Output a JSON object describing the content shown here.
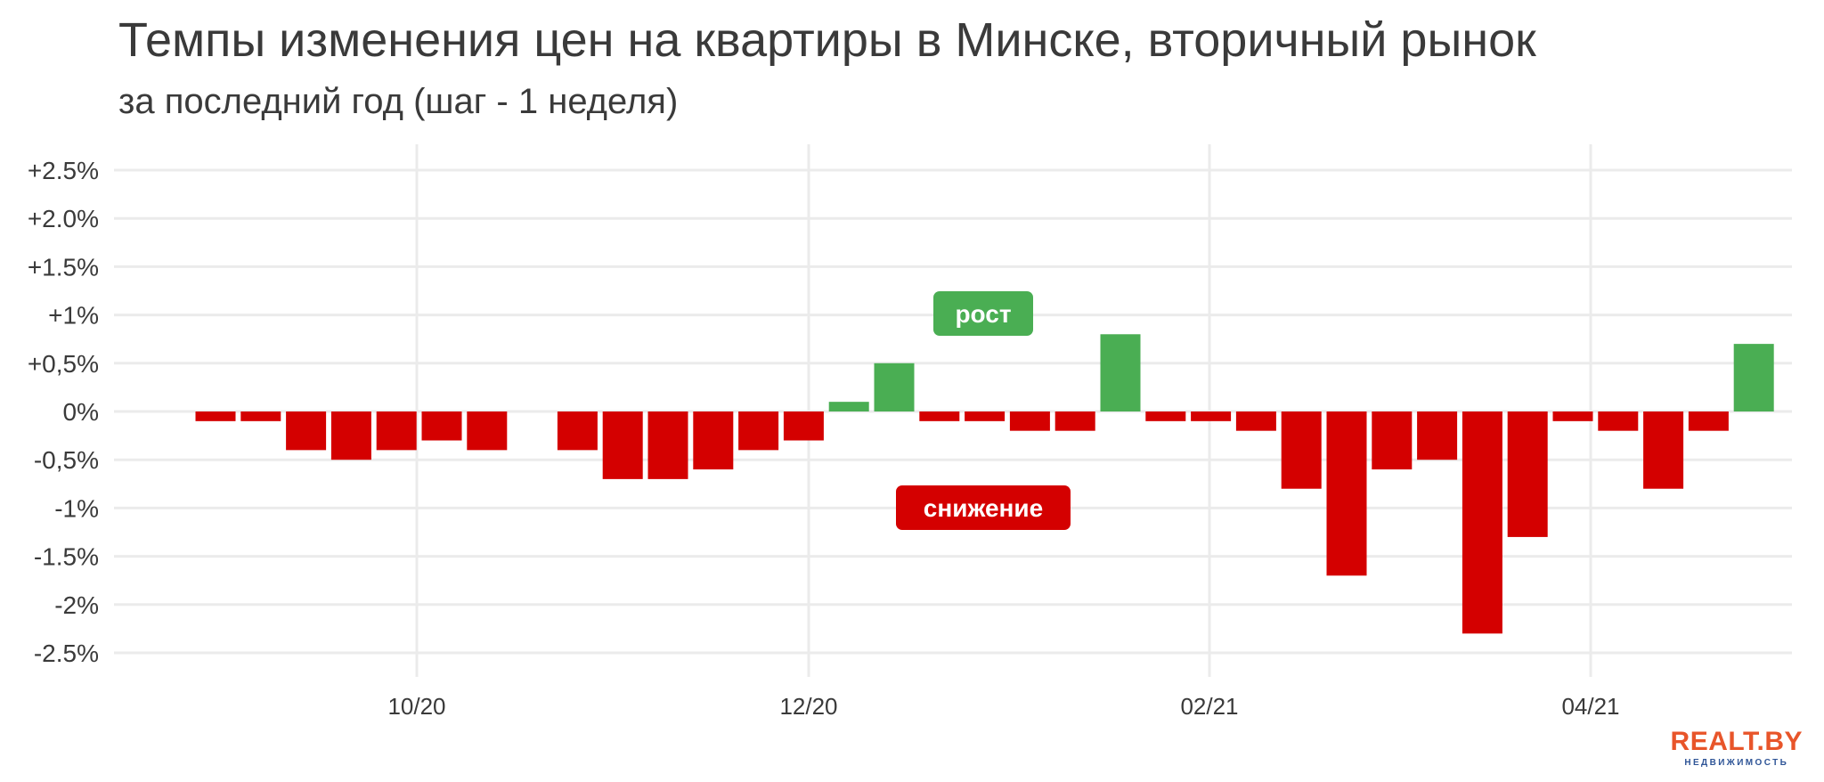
{
  "chart_data": {
    "type": "bar",
    "title": "Темпы изменения цен на квартиры в Минске, вторичный рынок",
    "subtitle": "за последний год (шаг - 1 неделя)",
    "x_ticks": [
      "10/20",
      "12/20",
      "02/21",
      "04/21"
    ],
    "y_ticks": [
      "+2.5%",
      "+2.0%",
      "+1.5%",
      "+1%",
      "+0,5%",
      "0%",
      "-0,5%",
      "-1%",
      "-1.5%",
      "-2%",
      "-2.5%"
    ],
    "ylim": [
      -2.5,
      2.5
    ],
    "grid": true,
    "values": [
      -0.1,
      -0.1,
      -0.4,
      -0.5,
      -0.4,
      -0.3,
      -0.4,
      null,
      -0.4,
      -0.7,
      -0.7,
      -0.6,
      -0.4,
      -0.3,
      0.1,
      0.5,
      -0.1,
      -0.1,
      -0.2,
      -0.2,
      0.8,
      -0.1,
      -0.1,
      -0.2,
      -0.8,
      -1.7,
      -0.6,
      -0.5,
      -2.3,
      -1.3,
      -0.1,
      -0.2,
      -0.8,
      -0.2,
      0.7
    ],
    "colors": {
      "increase": "#4aae53",
      "decrease": "#d40000"
    },
    "annotations": {
      "increase": "рост",
      "decrease": "снижение"
    }
  },
  "logo": {
    "main": "REALT.BY",
    "sub": "НЕДВИЖИМОСТЬ"
  }
}
